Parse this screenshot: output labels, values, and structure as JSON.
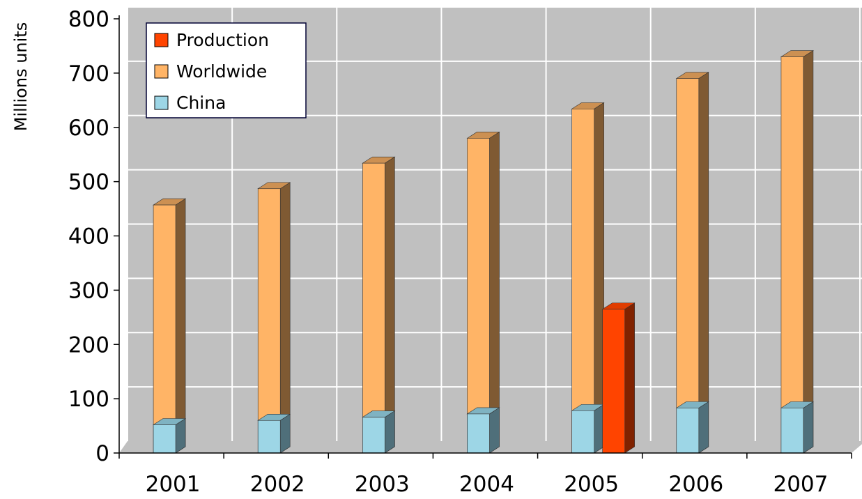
{
  "chart_data": {
    "type": "bar",
    "style": "3d-stacked",
    "categories": [
      "2001",
      "2002",
      "2003",
      "2004",
      "2005",
      "2006",
      "2007"
    ],
    "ylabel": "Millions units",
    "ylim": [
      0,
      800
    ],
    "yticks": [
      "0",
      "100",
      "200",
      "300",
      "400",
      "500",
      "600",
      "700",
      "800"
    ],
    "grid": true,
    "legend_position": "top-left",
    "legend": [
      "Production",
      "Worldwide",
      "China"
    ],
    "series": [
      {
        "name": "China",
        "stack": "main",
        "values": [
          52,
          60,
          66,
          72,
          78,
          83,
          83
        ]
      },
      {
        "name": "Worldwide",
        "stack": "main",
        "values": [
          457,
          487,
          534,
          580,
          634,
          690,
          730
        ]
      },
      {
        "name": "Production",
        "stack": "side",
        "values": [
          null,
          null,
          null,
          null,
          265,
          null,
          null
        ]
      }
    ],
    "colors": {
      "china_front": "#9DD6E6",
      "china_side": "#4F6F7A",
      "china_top": "#7FB3C2",
      "worldwide_front": "#FFB466",
      "worldwide_side": "#7F5A33",
      "worldwide_top": "#CC9052",
      "production_front": "#FF4400",
      "production_side": "#802200",
      "production_top": "#E03C00",
      "wall": "#C0C0C0",
      "grid": "#FFFFFF"
    }
  }
}
